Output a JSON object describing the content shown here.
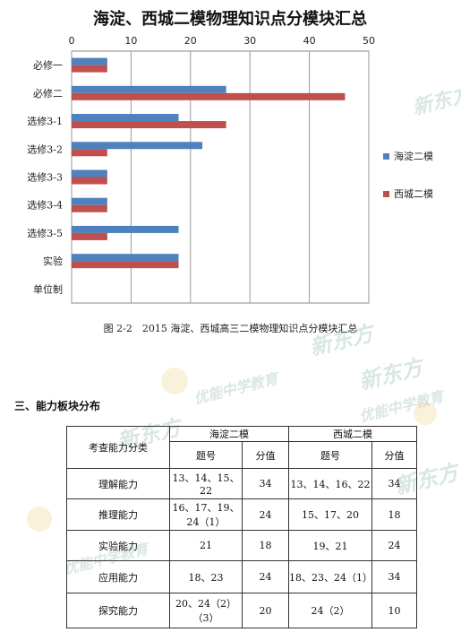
{
  "chart_data": {
    "type": "bar",
    "orientation": "horizontal",
    "title": "海淀、西城二模物理知识点分模块汇总",
    "categories": [
      "必修一",
      "必修二",
      "选修3-1",
      "选修3-2",
      "选修3-3",
      "选修3-4",
      "选修3-5",
      "实验",
      "单位制"
    ],
    "series": [
      {
        "name": "海淀二模",
        "color": "#4f81bd",
        "values": [
          6,
          26,
          18,
          22,
          6,
          6,
          18,
          18,
          0
        ]
      },
      {
        "name": "西城二模",
        "color": "#c0504d",
        "values": [
          6,
          46,
          26,
          6,
          6,
          6,
          6,
          18,
          0
        ]
      }
    ],
    "xticks": [
      0,
      10,
      20,
      30,
      40,
      50
    ],
    "xlim": [
      0,
      50
    ],
    "axis_position": "top",
    "grid": true,
    "legend_position": "right"
  },
  "caption": "图 2-2　2015 海淀、西城高三二模物理知识点分模块汇总",
  "section_title": "三、能力板块分布",
  "table": {
    "category_header": "考查能力分类",
    "group_headers": [
      "海淀二模",
      "西城二模"
    ],
    "sub_headers": [
      "题号",
      "分值",
      "题号",
      "分值"
    ],
    "rows": [
      {
        "category": "理解能力",
        "hd_q": "13、14、15、22",
        "hd_v": "34",
        "xc_q": "13、14、16、22",
        "xc_v": "34"
      },
      {
        "category": "推理能力",
        "hd_q": "16、17、19、24（1）",
        "hd_v": "24",
        "xc_q": "15、17、20",
        "xc_v": "18"
      },
      {
        "category": "实验能力",
        "hd_q": "21",
        "hd_v": "18",
        "xc_q": "19、21",
        "xc_v": "24"
      },
      {
        "category": "应用能力",
        "hd_q": "18、23",
        "hd_v": "24",
        "xc_q": "18、23、24（1）",
        "xc_v": "34"
      },
      {
        "category": "探究能力",
        "hd_q": "20、24（2）（3）",
        "hd_v": "20",
        "xc_q": "24（2）",
        "xc_v": "10"
      }
    ]
  },
  "watermarks": [
    "新东方",
    "优能中学教育"
  ]
}
